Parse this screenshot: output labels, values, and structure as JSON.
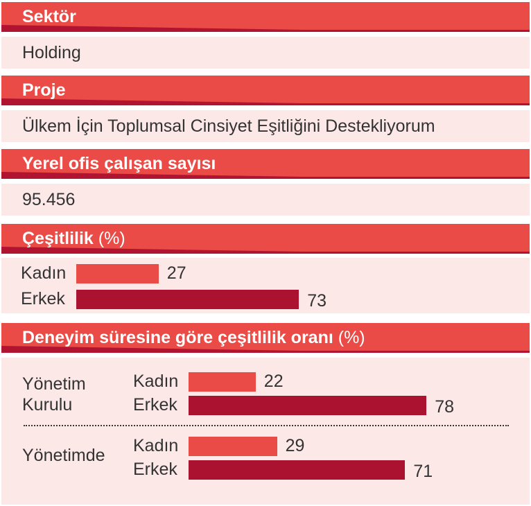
{
  "colors": {
    "header": "#ea4b46",
    "stripe": "#b01430",
    "panel": "#fde8e8",
    "kadin_bar": "#ea4b46",
    "erkek_bar": "#ab1230",
    "text": "#333333"
  },
  "sektor": {
    "header": "Sektör",
    "value": "Holding"
  },
  "proje": {
    "header": "Proje",
    "value": "Ülkem İçin Toplumsal Cinsiyet Eşitliğini Destekliyorum"
  },
  "ofis": {
    "header": "Yerel ofis çalışan sayısı",
    "value": "95.456"
  },
  "cesitlilik": {
    "header": "Çeşitlilik",
    "header_unit": "(%)"
  },
  "deneyim": {
    "header": "Deneyim süresine göre çeşitlilik oranı",
    "header_unit": "(%)"
  },
  "chart_data": [
    {
      "type": "bar",
      "orientation": "horizontal",
      "categories": [
        "Kadın",
        "Erkek"
      ],
      "values": [
        27,
        73
      ],
      "value_labels": [
        "27",
        "73"
      ]
    },
    {
      "type": "bar",
      "orientation": "horizontal",
      "groups": [
        {
          "label_lines": [
            "Yönetim",
            "Kurulu"
          ],
          "categories": [
            "Kadın",
            "Erkek"
          ],
          "values": [
            22,
            78
          ],
          "value_labels": [
            "22",
            "78"
          ]
        },
        {
          "label_lines": [
            "Yönetimde"
          ],
          "categories": [
            "Kadın",
            "Erkek"
          ],
          "values": [
            29,
            71
          ],
          "value_labels": [
            "29",
            "71"
          ]
        }
      ]
    }
  ]
}
